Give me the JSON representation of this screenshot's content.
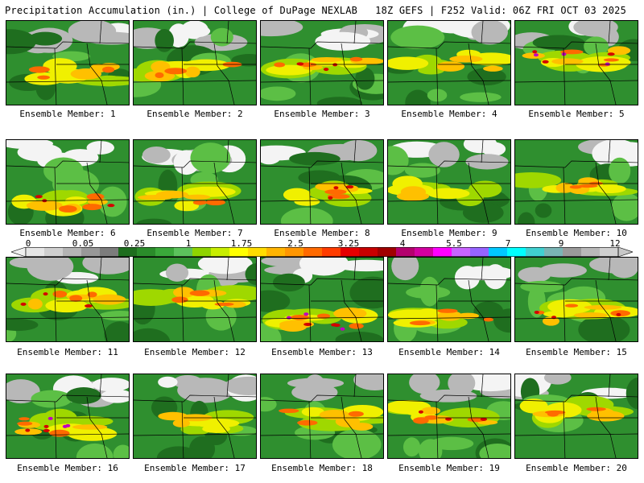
{
  "header": {
    "left": "Precipitation Accumulation (in.) | College of DuPage NEXLAB",
    "right": "18Z GEFS | F252 Valid: 06Z FRI OCT 03 2025"
  },
  "panels": [
    {
      "label": "Ensemble Member: 1",
      "intensity": 2
    },
    {
      "label": "Ensemble Member: 2",
      "intensity": 2
    },
    {
      "label": "Ensemble Member: 3",
      "intensity": 3
    },
    {
      "label": "Ensemble Member: 4",
      "intensity": 1
    },
    {
      "label": "Ensemble Member: 5",
      "intensity": 4
    },
    {
      "label": "Ensemble Member: 6",
      "intensity": 3
    },
    {
      "label": "Ensemble Member: 7",
      "intensity": 2
    },
    {
      "label": "Ensemble Member: 8",
      "intensity": 3
    },
    {
      "label": "Ensemble Member: 9",
      "intensity": 1
    },
    {
      "label": "Ensemble Member: 10",
      "intensity": 2
    },
    {
      "label": "Ensemble Member: 11",
      "intensity": 3
    },
    {
      "label": "Ensemble Member: 12",
      "intensity": 2
    },
    {
      "label": "Ensemble Member: 13",
      "intensity": 4
    },
    {
      "label": "Ensemble Member: 14",
      "intensity": 2
    },
    {
      "label": "Ensemble Member: 15",
      "intensity": 3
    },
    {
      "label": "Ensemble Member: 16",
      "intensity": 4
    },
    {
      "label": "Ensemble Member: 17",
      "intensity": 1
    },
    {
      "label": "Ensemble Member: 18",
      "intensity": 2
    },
    {
      "label": "Ensemble Member: 19",
      "intensity": 3
    },
    {
      "label": "Ensemble Member: 20",
      "intensity": 2
    }
  ],
  "colorbar": {
    "ticks": [
      "0",
      "0.05",
      "0.25",
      "1",
      "1.75",
      "2.5",
      "3.25",
      "4",
      "5.5",
      "7",
      "9",
      "12"
    ],
    "colors": [
      "#e6e6e6",
      "#cfcfcf",
      "#b4b4b4",
      "#989898",
      "#7c7c7c",
      "#1e6e1e",
      "#2a8c2a",
      "#3aa83a",
      "#5cc25c",
      "#8fd400",
      "#c8ee00",
      "#ffff00",
      "#ffdc00",
      "#ffb400",
      "#ff9600",
      "#ff6a00",
      "#ff3c00",
      "#e60000",
      "#c80000",
      "#a00000",
      "#b4006e",
      "#d200a0",
      "#ff00ff",
      "#c864ff",
      "#9664ff",
      "#00c8ff",
      "#00ffff",
      "#40d0d0",
      "#7ab4b4",
      "#9a9a9a",
      "#b8b8b8",
      "#d0d0d0"
    ]
  }
}
